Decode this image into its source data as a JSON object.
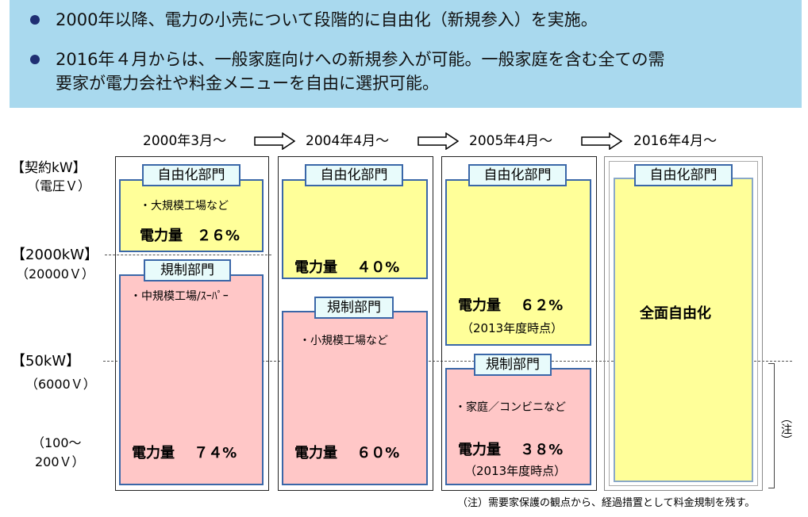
{
  "header": {
    "bullets": [
      "2000年以降、電力の小売について段階的に自由化（新規参入）を実施。",
      "2016年４月からは、一般家庭向けへの新規参入が可能。一般家庭を含む全ての需",
      "要家が電力会社や料金メニューを自由に選択可能。"
    ]
  },
  "periods": [
    "2000年3月～",
    "2004年4月～",
    "2005年4月～",
    "2016年4月～"
  ],
  "y_axis": {
    "title": "【契約kW】",
    "title_sub": "（電圧Ｖ）",
    "level1": "【2000kW】",
    "level1_sub": "（20000Ｖ）",
    "level2": "【50kW】",
    "level2_sub": "（6000Ｖ）",
    "level3_a": "（100～",
    "level3_b": "200Ｖ）"
  },
  "columns": [
    {
      "liberal_label": "自由化部門",
      "liberal_note": "・大規模工場など",
      "liberal_amount": "電力量　２６%",
      "regulated_label": "規制部門",
      "regulated_note": "・中規模工場/ｽｰﾊﾟｰ",
      "regulated_amount": "電力量　 ７４%"
    },
    {
      "liberal_label": "自由化部門",
      "liberal_amount": "電力量　 ４０%",
      "regulated_label": "規制部門",
      "regulated_note": "・小規模工場など",
      "regulated_amount": "電力量　 ６０%"
    },
    {
      "liberal_label": "自由化部門",
      "liberal_amount": "電力量　 ６２%",
      "liberal_sub": "（2013年度時点）",
      "regulated_label": "規制部門",
      "regulated_note": "・家庭／コンビニなど",
      "regulated_amount": "電力量　 ３８%",
      "regulated_sub": "（2013年度時点）"
    },
    {
      "liberal_label": "自由化部門",
      "full_label": "全面自由化"
    }
  ],
  "bracket_label": "（注）",
  "footnote": "（注）需要家保護の観点から、経過措置として料金規制を残す。",
  "colors": {
    "header_bg": "#a9d9ee",
    "liberalized": "#ffff99",
    "regulated": "#ffc7c7",
    "label_border": "#3a67a8"
  }
}
